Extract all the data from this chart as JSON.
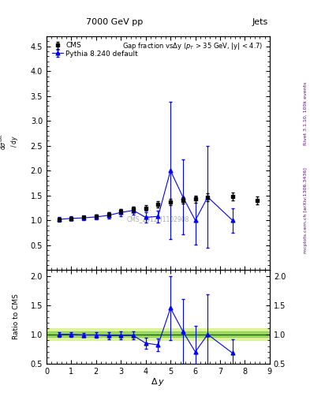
{
  "title_top": "7000 GeV pp",
  "title_right": "Jets",
  "rivet_label": "Rivet 3.1.10, 100k events",
  "mcplots_label": "mcplots.cern.ch [arXiv:1306.3436]",
  "cms_id": "CMS_2012_I1102908",
  "cms_x": [
    0.5,
    1.0,
    1.5,
    2.0,
    2.5,
    3.0,
    3.5,
    4.0,
    4.5,
    5.0,
    5.5,
    6.0,
    6.5,
    7.5,
    8.5
  ],
  "cms_y": [
    1.02,
    1.04,
    1.06,
    1.08,
    1.12,
    1.18,
    1.22,
    1.25,
    1.32,
    1.37,
    1.4,
    1.43,
    1.47,
    1.48,
    1.4
  ],
  "cms_yerr": [
    0.03,
    0.03,
    0.03,
    0.03,
    0.04,
    0.04,
    0.05,
    0.05,
    0.06,
    0.07,
    0.07,
    0.07,
    0.08,
    0.08,
    0.08
  ],
  "pythia_x": [
    0.5,
    1.0,
    1.5,
    2.0,
    2.5,
    3.0,
    3.5,
    4.0,
    4.5,
    5.0,
    5.5,
    6.0,
    6.5,
    7.5
  ],
  "pythia_y": [
    1.02,
    1.04,
    1.05,
    1.07,
    1.1,
    1.16,
    1.2,
    1.06,
    1.08,
    2.0,
    1.47,
    1.0,
    1.47,
    1.0
  ],
  "pythia_yerr_lo": [
    0.04,
    0.04,
    0.04,
    0.05,
    0.06,
    0.07,
    0.08,
    0.1,
    0.12,
    1.38,
    0.75,
    0.48,
    1.02,
    0.25
  ],
  "pythia_yerr_hi": [
    0.04,
    0.04,
    0.04,
    0.05,
    0.06,
    0.07,
    0.08,
    0.1,
    0.12,
    1.38,
    0.75,
    0.48,
    1.02,
    0.25
  ],
  "ratio_pythia_y": [
    1.0,
    1.0,
    0.99,
    0.99,
    0.98,
    0.98,
    0.98,
    0.85,
    0.82,
    1.45,
    1.05,
    0.7,
    1.0,
    0.68
  ],
  "ratio_pythia_yerr_lo": [
    0.04,
    0.04,
    0.04,
    0.05,
    0.06,
    0.07,
    0.07,
    0.09,
    0.11,
    0.55,
    0.55,
    0.45,
    0.68,
    0.24
  ],
  "ratio_pythia_yerr_hi": [
    0.04,
    0.04,
    0.04,
    0.05,
    0.06,
    0.07,
    0.07,
    0.09,
    0.11,
    0.55,
    0.55,
    0.45,
    0.68,
    0.24
  ],
  "cms_color": "black",
  "pythia_color": "blue",
  "band_color_outer": "#ccee66",
  "band_color_inner": "#88cc44",
  "ref_line_color": "#006600",
  "main_ylim": [
    0.0,
    4.7
  ],
  "main_yticks": [
    0.5,
    1.0,
    1.5,
    2.0,
    2.5,
    3.0,
    3.5,
    4.0,
    4.5
  ],
  "ratio_ylim": [
    0.5,
    2.1
  ],
  "ratio_yticks": [
    0.5,
    1.0,
    1.5,
    2.0
  ],
  "xlim": [
    0,
    9
  ]
}
